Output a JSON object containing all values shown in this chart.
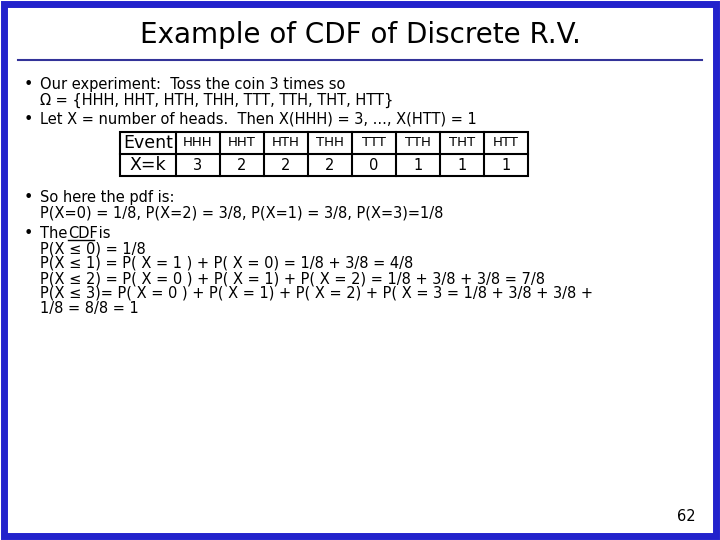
{
  "title": "Example of CDF of Discrete R.V.",
  "bg_color": "#FFFFFF",
  "border_color": "#2222CC",
  "border_width": 5,
  "title_fontsize": 20,
  "body_fontsize": 10.5,
  "font_family": "DejaVu Sans",
  "slide_number": "62",
  "bullet1_line1": "Our experiment:  Toss the coin 3 times so",
  "bullet1_line2": "Ω = {HHH, HHT, HTH, THH, TTT, TTH, THT, HTT}",
  "bullet2": "Let X = number of heads.  Then X(HHH) = 3, ..., X(HTT) = 1",
  "table_headers": [
    "Event",
    "HHH",
    "HHT",
    "HTH",
    "THH",
    "TTT",
    "TTH",
    "THT",
    "HTT"
  ],
  "table_row_label": "X=k",
  "table_row_values": [
    "3",
    "2",
    "2",
    "2",
    "0",
    "1",
    "1",
    "1"
  ],
  "bullet3_line1": "So here the pdf is:",
  "bullet3_line2": "P(X=0) = 1/8, P(X=2) = 3/8, P(X=1) = 3/8, P(X=3)=1/8",
  "bullet4_line1_pre": "The ",
  "bullet4_line1_cdf": "CDF",
  "bullet4_line1_post": " is",
  "bullet4_line2": "P(X ≤ 0) = 1/8",
  "bullet4_line3": "P(X ≤ 1) = P( X = 1 ) + P( X = 0) = 1/8 + 3/8 = 4/8",
  "bullet4_line4": "P(X ≤ 2) = P( X = 0 ) + P( X = 1) + P( X = 2) = 1/8 + 3/8 + 3/8 = 7/8",
  "bullet4_line5": "P(X ≤ 3)= P( X = 0 ) + P( X = 1) + P( X = 2) + P( X = 3 = 1/8 + 3/8 + 3/8 +",
  "bullet4_line6": "1/8 = 8/8 = 1",
  "line_color": "#333399"
}
